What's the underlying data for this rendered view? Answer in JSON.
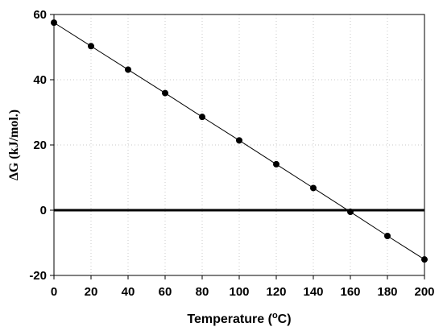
{
  "chart_data": {
    "type": "line",
    "title": "",
    "xlabel": "Temperature (",
    "xlabel_sup": "o",
    "xlabel_tail": "C)",
    "ylabel": "ΔG (kJ/mol.)",
    "xlim": [
      0,
      200
    ],
    "ylim": [
      -20,
      60
    ],
    "xticks": [
      0,
      20,
      40,
      60,
      80,
      100,
      120,
      140,
      160,
      180,
      200
    ],
    "yticks": [
      -20,
      0,
      20,
      40,
      60
    ],
    "grid": true,
    "reference_line_y": 0,
    "series": [
      {
        "x": [
          0,
          20,
          40,
          60,
          80,
          100,
          120,
          140,
          160,
          180,
          200
        ],
        "values": [
          57.5,
          50.3,
          43.1,
          35.9,
          28.6,
          21.4,
          14.1,
          6.8,
          -0.5,
          -7.9,
          -15.1
        ]
      }
    ]
  }
}
